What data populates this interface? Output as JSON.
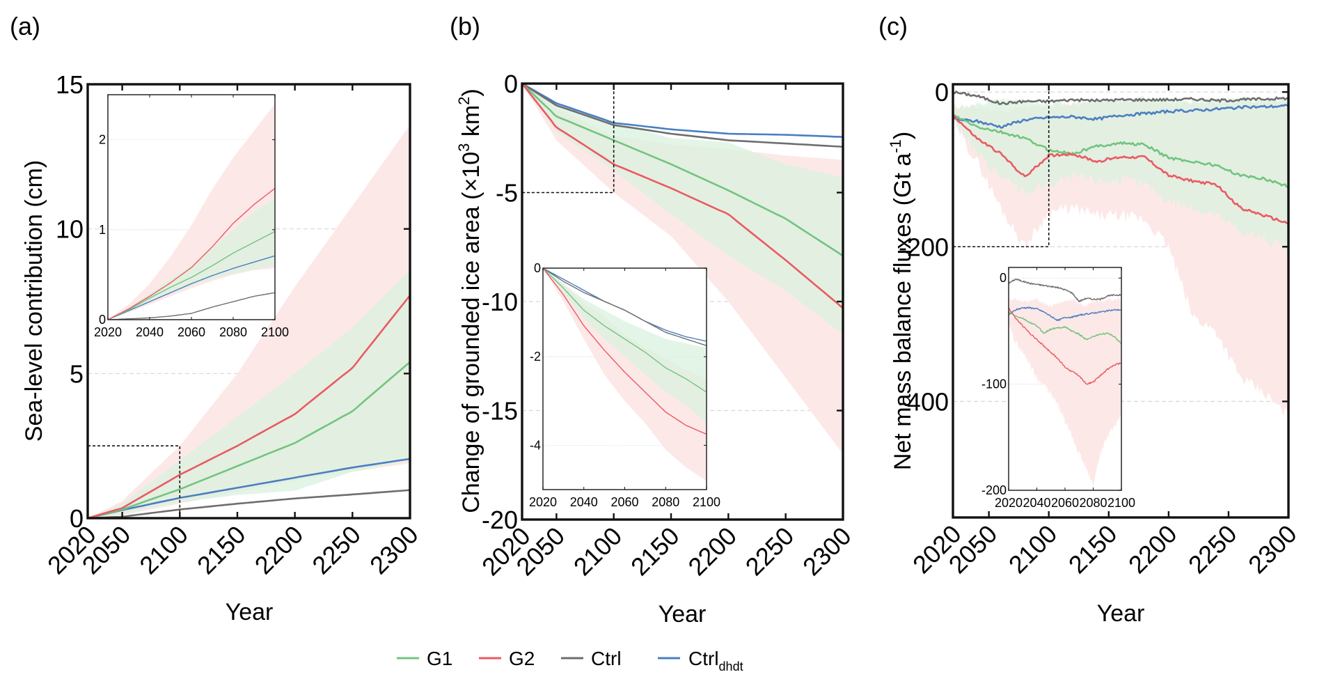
{
  "figure": {
    "legend": {
      "placement": "bottom-center",
      "entries": [
        {
          "key": "G1",
          "label": "G1",
          "subscript": "",
          "color": "#72c47f"
        },
        {
          "key": "G2",
          "label": "G2",
          "subscript": "",
          "color": "#ea5a62"
        },
        {
          "key": "Ctrl",
          "label": "Ctrl",
          "subscript": "",
          "color": "#6e6e6e"
        },
        {
          "key": "Ctrl_dhdt",
          "label": "Ctrl",
          "subscript": "dhdt",
          "color": "#4a7fc0"
        }
      ]
    },
    "band_colors": {
      "G2": "#fde8e8",
      "G1": "#d9f2df",
      "overlap": "#efe6dc"
    }
  },
  "chart_data": [
    {
      "id": "a",
      "panel_label": "(a)",
      "type": "line",
      "title": "",
      "xlabel": "Year",
      "ylabel": "Sea-level contribution (cm)",
      "xlim": [
        2020,
        2300
      ],
      "ylim": [
        0,
        15
      ],
      "xticks": [
        2020,
        2050,
        2100,
        2150,
        2200,
        2250,
        2300
      ],
      "yticks": [
        0,
        5,
        10,
        15
      ],
      "ytick_labels": [
        "0",
        "5",
        "10",
        "15"
      ],
      "grid": "dashed horizontal at 5 and 10",
      "zoom_box": {
        "x": [
          2020,
          2100
        ],
        "y": [
          0,
          2.5
        ]
      },
      "x": [
        2020,
        2050,
        2100,
        2150,
        2200,
        2250,
        2300
      ],
      "series": [
        {
          "name": "Ctrl",
          "values": [
            0,
            0.05,
            0.3,
            0.5,
            0.68,
            0.82,
            0.97
          ]
        },
        {
          "name": "Ctrl_dhdt",
          "values": [
            0,
            0.28,
            0.7,
            1.05,
            1.4,
            1.75,
            2.05
          ]
        },
        {
          "name": "G1",
          "values": [
            0,
            0.3,
            1.0,
            1.8,
            2.6,
            3.7,
            5.4
          ]
        },
        {
          "name": "G2",
          "values": [
            0,
            0.35,
            1.5,
            2.5,
            3.6,
            5.2,
            7.7
          ]
        }
      ],
      "bands": [
        {
          "name": "G2",
          "upper": [
            0,
            0.6,
            2.5,
            5.0,
            8.0,
            10.8,
            13.6
          ],
          "lower": [
            0,
            0.1,
            0.5,
            0.9,
            1.3,
            1.6,
            1.9
          ]
        },
        {
          "name": "G1",
          "upper": [
            0,
            0.5,
            2.0,
            3.5,
            5.0,
            6.6,
            8.6
          ],
          "lower": [
            0,
            0.15,
            0.55,
            0.8,
            0.95,
            1.6,
            2.0
          ]
        }
      ],
      "inset": {
        "xlim": [
          2020,
          2100
        ],
        "ylim": [
          0,
          2.5
        ],
        "xticks": [
          2020,
          2040,
          2060,
          2080,
          2100
        ],
        "yticks": [
          0,
          1,
          2
        ],
        "ytick_labels": [
          "0",
          "1",
          "2"
        ],
        "x": [
          2020,
          2030,
          2040,
          2050,
          2060,
          2070,
          2080,
          2090,
          2100
        ],
        "series": [
          {
            "name": "Ctrl",
            "values": [
              0,
              0.01,
              0.02,
              0.04,
              0.07,
              0.14,
              0.2,
              0.26,
              0.3
            ]
          },
          {
            "name": "Ctrl_dhdt",
            "values": [
              0,
              0.1,
              0.2,
              0.3,
              0.4,
              0.49,
              0.57,
              0.64,
              0.71
            ]
          },
          {
            "name": "G1",
            "values": [
              0,
              0.11,
              0.24,
              0.36,
              0.47,
              0.6,
              0.74,
              0.86,
              0.98
            ]
          },
          {
            "name": "G2",
            "values": [
              0,
              0.12,
              0.26,
              0.41,
              0.58,
              0.81,
              1.07,
              1.28,
              1.46
            ]
          }
        ],
        "bands": [
          {
            "name": "G2",
            "upper": [
              0,
              0.17,
              0.4,
              0.7,
              1.05,
              1.45,
              1.8,
              2.1,
              2.4
            ],
            "lower": [
              0,
              0.08,
              0.17,
              0.26,
              0.35,
              0.43,
              0.5,
              0.55,
              0.57
            ]
          },
          {
            "name": "G1",
            "upper": [
              0,
              0.13,
              0.29,
              0.45,
              0.6,
              0.8,
              1.0,
              1.2,
              1.35
            ],
            "lower": [
              0,
              0.09,
              0.2,
              0.29,
              0.38,
              0.45,
              0.51,
              0.56,
              0.6
            ]
          }
        ]
      }
    },
    {
      "id": "b",
      "panel_label": "(b)",
      "type": "line",
      "title": "",
      "xlabel": "Year",
      "ylabel": "Change of grounded ice area (×10",
      "ylabel_sup1": "3",
      "ylabel_mid": " km",
      "ylabel_sup2": "2",
      "ylabel_end": ")",
      "xlim": [
        2020,
        2300
      ],
      "ylim": [
        -20,
        0
      ],
      "xticks": [
        2020,
        2050,
        2100,
        2150,
        2200,
        2250,
        2300
      ],
      "yticks": [
        0,
        -5,
        -10,
        -15,
        -20
      ],
      "ytick_labels": [
        "0",
        "-5",
        "-10",
        "-15",
        "-20"
      ],
      "grid": "dashed horizontal at -5, -10, -15",
      "zoom_box": {
        "x": [
          2020,
          2100
        ],
        "y": [
          -5,
          0
        ]
      },
      "x": [
        2020,
        2050,
        2100,
        2150,
        2200,
        2250,
        2300
      ],
      "series": [
        {
          "name": "Ctrl_dhdt",
          "values": [
            0,
            -0.9,
            -1.8,
            -2.1,
            -2.3,
            -2.35,
            -2.45
          ]
        },
        {
          "name": "Ctrl",
          "values": [
            0,
            -1.0,
            -1.9,
            -2.3,
            -2.6,
            -2.75,
            -2.9
          ]
        },
        {
          "name": "G1",
          "values": [
            0,
            -1.5,
            -2.6,
            -3.7,
            -4.9,
            -6.2,
            -7.9
          ]
        },
        {
          "name": "G2",
          "values": [
            0,
            -2.0,
            -3.7,
            -4.8,
            -6.0,
            -8.1,
            -10.3
          ]
        }
      ],
      "bands": [
        {
          "name": "G2",
          "upper": [
            0,
            -1.1,
            -2.4,
            -2.8,
            -3.0,
            -3.3,
            -3.5
          ],
          "lower": [
            0,
            -2.6,
            -5.0,
            -7.0,
            -10.0,
            -13.5,
            -17.0
          ]
        },
        {
          "name": "G1",
          "upper": [
            0,
            -1.0,
            -1.8,
            -2.5,
            -2.7,
            -3.7,
            -4.3
          ],
          "lower": [
            0,
            -2.2,
            -4.0,
            -6.0,
            -7.9,
            -9.5,
            -11.5
          ]
        }
      ],
      "inset": {
        "xlim": [
          2020,
          2100
        ],
        "ylim": [
          -5,
          0
        ],
        "xticks": [
          2020,
          2040,
          2060,
          2080,
          2100
        ],
        "yticks": [
          0,
          -2,
          -4
        ],
        "ytick_labels": [
          "0",
          "-2",
          "-4"
        ],
        "x": [
          2020,
          2030,
          2040,
          2050,
          2060,
          2070,
          2080,
          2090,
          2100
        ],
        "series": [
          {
            "name": "Ctrl_dhdt",
            "values": [
              0,
              -0.25,
              -0.5,
              -0.75,
              -0.95,
              -1.2,
              -1.4,
              -1.55,
              -1.65
            ]
          },
          {
            "name": "Ctrl",
            "values": [
              0,
              -0.3,
              -0.55,
              -0.75,
              -0.95,
              -1.2,
              -1.45,
              -1.6,
              -1.75
            ]
          },
          {
            "name": "G1",
            "values": [
              0,
              -0.45,
              -0.95,
              -1.3,
              -1.6,
              -1.9,
              -2.25,
              -2.5,
              -2.8
            ]
          },
          {
            "name": "G2",
            "values": [
              0,
              -0.6,
              -1.3,
              -1.85,
              -2.35,
              -2.8,
              -3.25,
              -3.55,
              -3.75
            ]
          }
        ],
        "bands": [
          {
            "name": "G2",
            "upper": [
              0,
              -0.35,
              -0.8,
              -1.1,
              -1.5,
              -1.8,
              -2.05,
              -2.3,
              -2.5
            ],
            "lower": [
              0,
              -0.75,
              -1.6,
              -2.4,
              -3.0,
              -3.5,
              -4.1,
              -4.5,
              -4.8
            ]
          },
          {
            "name": "G1",
            "upper": [
              0,
              -0.35,
              -0.7,
              -0.95,
              -1.2,
              -1.4,
              -1.6,
              -1.7,
              -1.8
            ],
            "lower": [
              0,
              -0.55,
              -1.15,
              -1.6,
              -2.0,
              -2.4,
              -2.8,
              -3.1,
              -3.5
            ]
          }
        ]
      }
    },
    {
      "id": "c",
      "panel_label": "(c)",
      "type": "line",
      "title": "",
      "xlabel": "Year",
      "ylabel": "Net mass balance fluxes (Gt a",
      "ylabel_sup1": "-1",
      "ylabel_end": ")",
      "xlim": [
        2020,
        2300
      ],
      "ylim": [
        -550,
        10
      ],
      "xticks": [
        2020,
        2050,
        2100,
        2150,
        2200,
        2250,
        2300
      ],
      "yticks": [
        0,
        -200,
        -400
      ],
      "ytick_labels": [
        "0",
        "-200",
        "-400"
      ],
      "grid": "dashed horizontal at 0, -200, -400",
      "zoom_box": {
        "x": [
          2020,
          2100
        ],
        "y": [
          -200,
          10
        ]
      },
      "x": [
        2020,
        2040,
        2060,
        2080,
        2100,
        2120,
        2140,
        2160,
        2180,
        2200,
        2220,
        2240,
        2260,
        2280,
        2300
      ],
      "series": [
        {
          "name": "Ctrl",
          "values": [
            0,
            -5,
            -15,
            -12,
            -12,
            -10,
            -11,
            -10,
            -10,
            -10,
            -9,
            -11,
            -10,
            -9,
            -8
          ]
        },
        {
          "name": "Ctrl_dhdt",
          "values": [
            -35,
            -38,
            -45,
            -36,
            -33,
            -32,
            -35,
            -30,
            -28,
            -25,
            -24,
            -22,
            -20,
            -19,
            -18
          ]
        },
        {
          "name": "G1",
          "values": [
            -30,
            -45,
            -52,
            -60,
            -75,
            -80,
            -70,
            -66,
            -68,
            -85,
            -90,
            -95,
            -108,
            -112,
            -122
          ]
        },
        {
          "name": "G2",
          "values": [
            -30,
            -60,
            -80,
            -110,
            -82,
            -80,
            -90,
            -84,
            -84,
            -108,
            -115,
            -120,
            -150,
            -160,
            -170
          ]
        }
      ],
      "bands": [
        {
          "name": "G2",
          "upper": [
            -18,
            -20,
            -25,
            -20,
            -18,
            -15,
            -15,
            -12,
            -12,
            -14,
            -15,
            -15,
            -12,
            -12,
            -12
          ],
          "lower": [
            -40,
            -90,
            -150,
            -200,
            -155,
            -150,
            -160,
            -160,
            -165,
            -200,
            -290,
            -310,
            -370,
            -390,
            -420
          ]
        },
        {
          "name": "G1",
          "upper": [
            -20,
            -18,
            -10,
            -12,
            -15,
            -15,
            -10,
            -10,
            -8,
            -10,
            -12,
            -10,
            -9,
            -9,
            -8
          ],
          "lower": [
            -35,
            -80,
            -110,
            -130,
            -120,
            -110,
            -115,
            -115,
            -120,
            -140,
            -150,
            -160,
            -180,
            -190,
            -205
          ]
        }
      ],
      "inset": {
        "xlim": [
          2020,
          2100
        ],
        "ylim": [
          -200,
          10
        ],
        "xticks": [
          2020,
          2040,
          2060,
          2080,
          2100
        ],
        "yticks": [
          0,
          -100,
          -200
        ],
        "ytick_labels": [
          "0",
          "-100",
          "-200"
        ],
        "x": [
          2020,
          2025,
          2030,
          2035,
          2040,
          2045,
          2050,
          2055,
          2060,
          2065,
          2070,
          2075,
          2080,
          2085,
          2090,
          2095,
          2100
        ],
        "series": [
          {
            "name": "Ctrl",
            "values": [
              -5,
              -1,
              -3,
              -5,
              -6,
              -7,
              -8,
              -9,
              -11,
              -14,
              -22,
              -19,
              -20,
              -20,
              -17,
              -16,
              -16
            ]
          },
          {
            "name": "Ctrl_dhdt",
            "values": [
              -35,
              -30,
              -28,
              -28,
              -29,
              -32,
              -36,
              -40,
              -37,
              -37,
              -35,
              -34,
              -33,
              -32,
              -31,
              -30,
              -30
            ]
          },
          {
            "name": "G1",
            "values": [
              -32,
              -36,
              -38,
              -42,
              -45,
              -52,
              -48,
              -47,
              -46,
              -50,
              -53,
              -58,
              -55,
              -53,
              -52,
              -55,
              -62
            ]
          },
          {
            "name": "G2",
            "values": [
              -28,
              -38,
              -45,
              -52,
              -58,
              -64,
              -70,
              -76,
              -84,
              -88,
              -92,
              -100,
              -98,
              -92,
              -86,
              -82,
              -80
            ]
          }
        ],
        "bands": [
          {
            "name": "G2",
            "upper": [
              -20,
              -20,
              -22,
              -22,
              -20,
              -24,
              -26,
              -24,
              -22,
              -20,
              -24,
              -26,
              -22,
              -22,
              -20,
              -20,
              -20
            ],
            "lower": [
              -45,
              -60,
              -70,
              -80,
              -95,
              -100,
              -110,
              -120,
              -135,
              -150,
              -165,
              -180,
              -195,
              -165,
              -150,
              -140,
              -130
            ]
          },
          {
            "name": "G1",
            "upper": [
              -25,
              -25,
              -24,
              -22,
              -16,
              -28,
              -30,
              -30,
              -30,
              -25,
              -20,
              -20,
              -22,
              -22,
              -22,
              -20,
              -18
            ]
          },
          {
            "name": "G1_lower_only",
            "lower": [
              -40,
              -48,
              -55,
              -60,
              -65,
              -72,
              -75,
              -78,
              -80,
              -85,
              -90,
              -95,
              -92,
              -90,
              -88,
              -90,
              -95
            ]
          }
        ]
      }
    }
  ]
}
